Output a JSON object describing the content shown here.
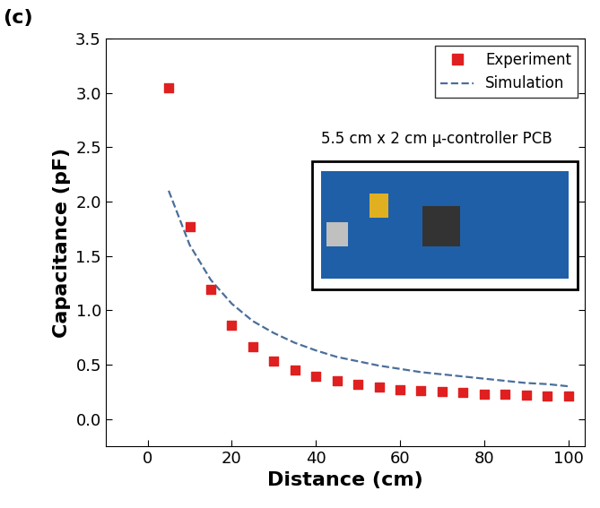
{
  "panel_label": "(c)",
  "chart_data": {
    "type": "scatter",
    "xlabel": "Distance (cm)",
    "ylabel": "Capacitance (pF)",
    "annotation": "5.5 cm x 2 cm μ-controller PCB",
    "xlim": [
      -10,
      104
    ],
    "ylim": [
      -0.25,
      3.5
    ],
    "xticks": [
      0,
      20,
      40,
      60,
      80,
      100
    ],
    "yticks": [
      {
        "value": 0,
        "label": "0.0"
      },
      {
        "value": 0.5,
        "label": "0.5"
      },
      {
        "value": 1,
        "label": "1.0"
      },
      {
        "value": 1.5,
        "label": "1.5"
      },
      {
        "value": 2,
        "label": "2.0"
      },
      {
        "value": 2.5,
        "label": "2.5"
      },
      {
        "value": 3,
        "label": "3.0"
      },
      {
        "value": 3.5,
        "label": "3.5"
      }
    ],
    "legend": "upper right",
    "grid": false,
    "x": [
      5,
      10,
      15,
      20,
      25,
      30,
      35,
      40,
      45,
      50,
      55,
      60,
      65,
      70,
      75,
      80,
      85,
      90,
      95,
      100
    ],
    "series": [
      {
        "name": "Experiment",
        "type": "scatter",
        "marker": "square",
        "color": "#e02020",
        "values": [
          3.05,
          1.77,
          1.19,
          0.86,
          0.66,
          0.53,
          0.45,
          0.39,
          0.35,
          0.32,
          0.29,
          0.27,
          0.26,
          0.25,
          0.24,
          0.23,
          0.23,
          0.22,
          0.21,
          0.21
        ]
      },
      {
        "name": "Simulation",
        "type": "line",
        "line_style": "dashed",
        "color": "#4a6f9a",
        "values": [
          2.1,
          1.6,
          1.28,
          1.06,
          0.9,
          0.79,
          0.7,
          0.63,
          0.57,
          0.53,
          0.49,
          0.46,
          0.43,
          0.41,
          0.39,
          0.37,
          0.35,
          0.33,
          0.32,
          0.3
        ]
      }
    ]
  }
}
